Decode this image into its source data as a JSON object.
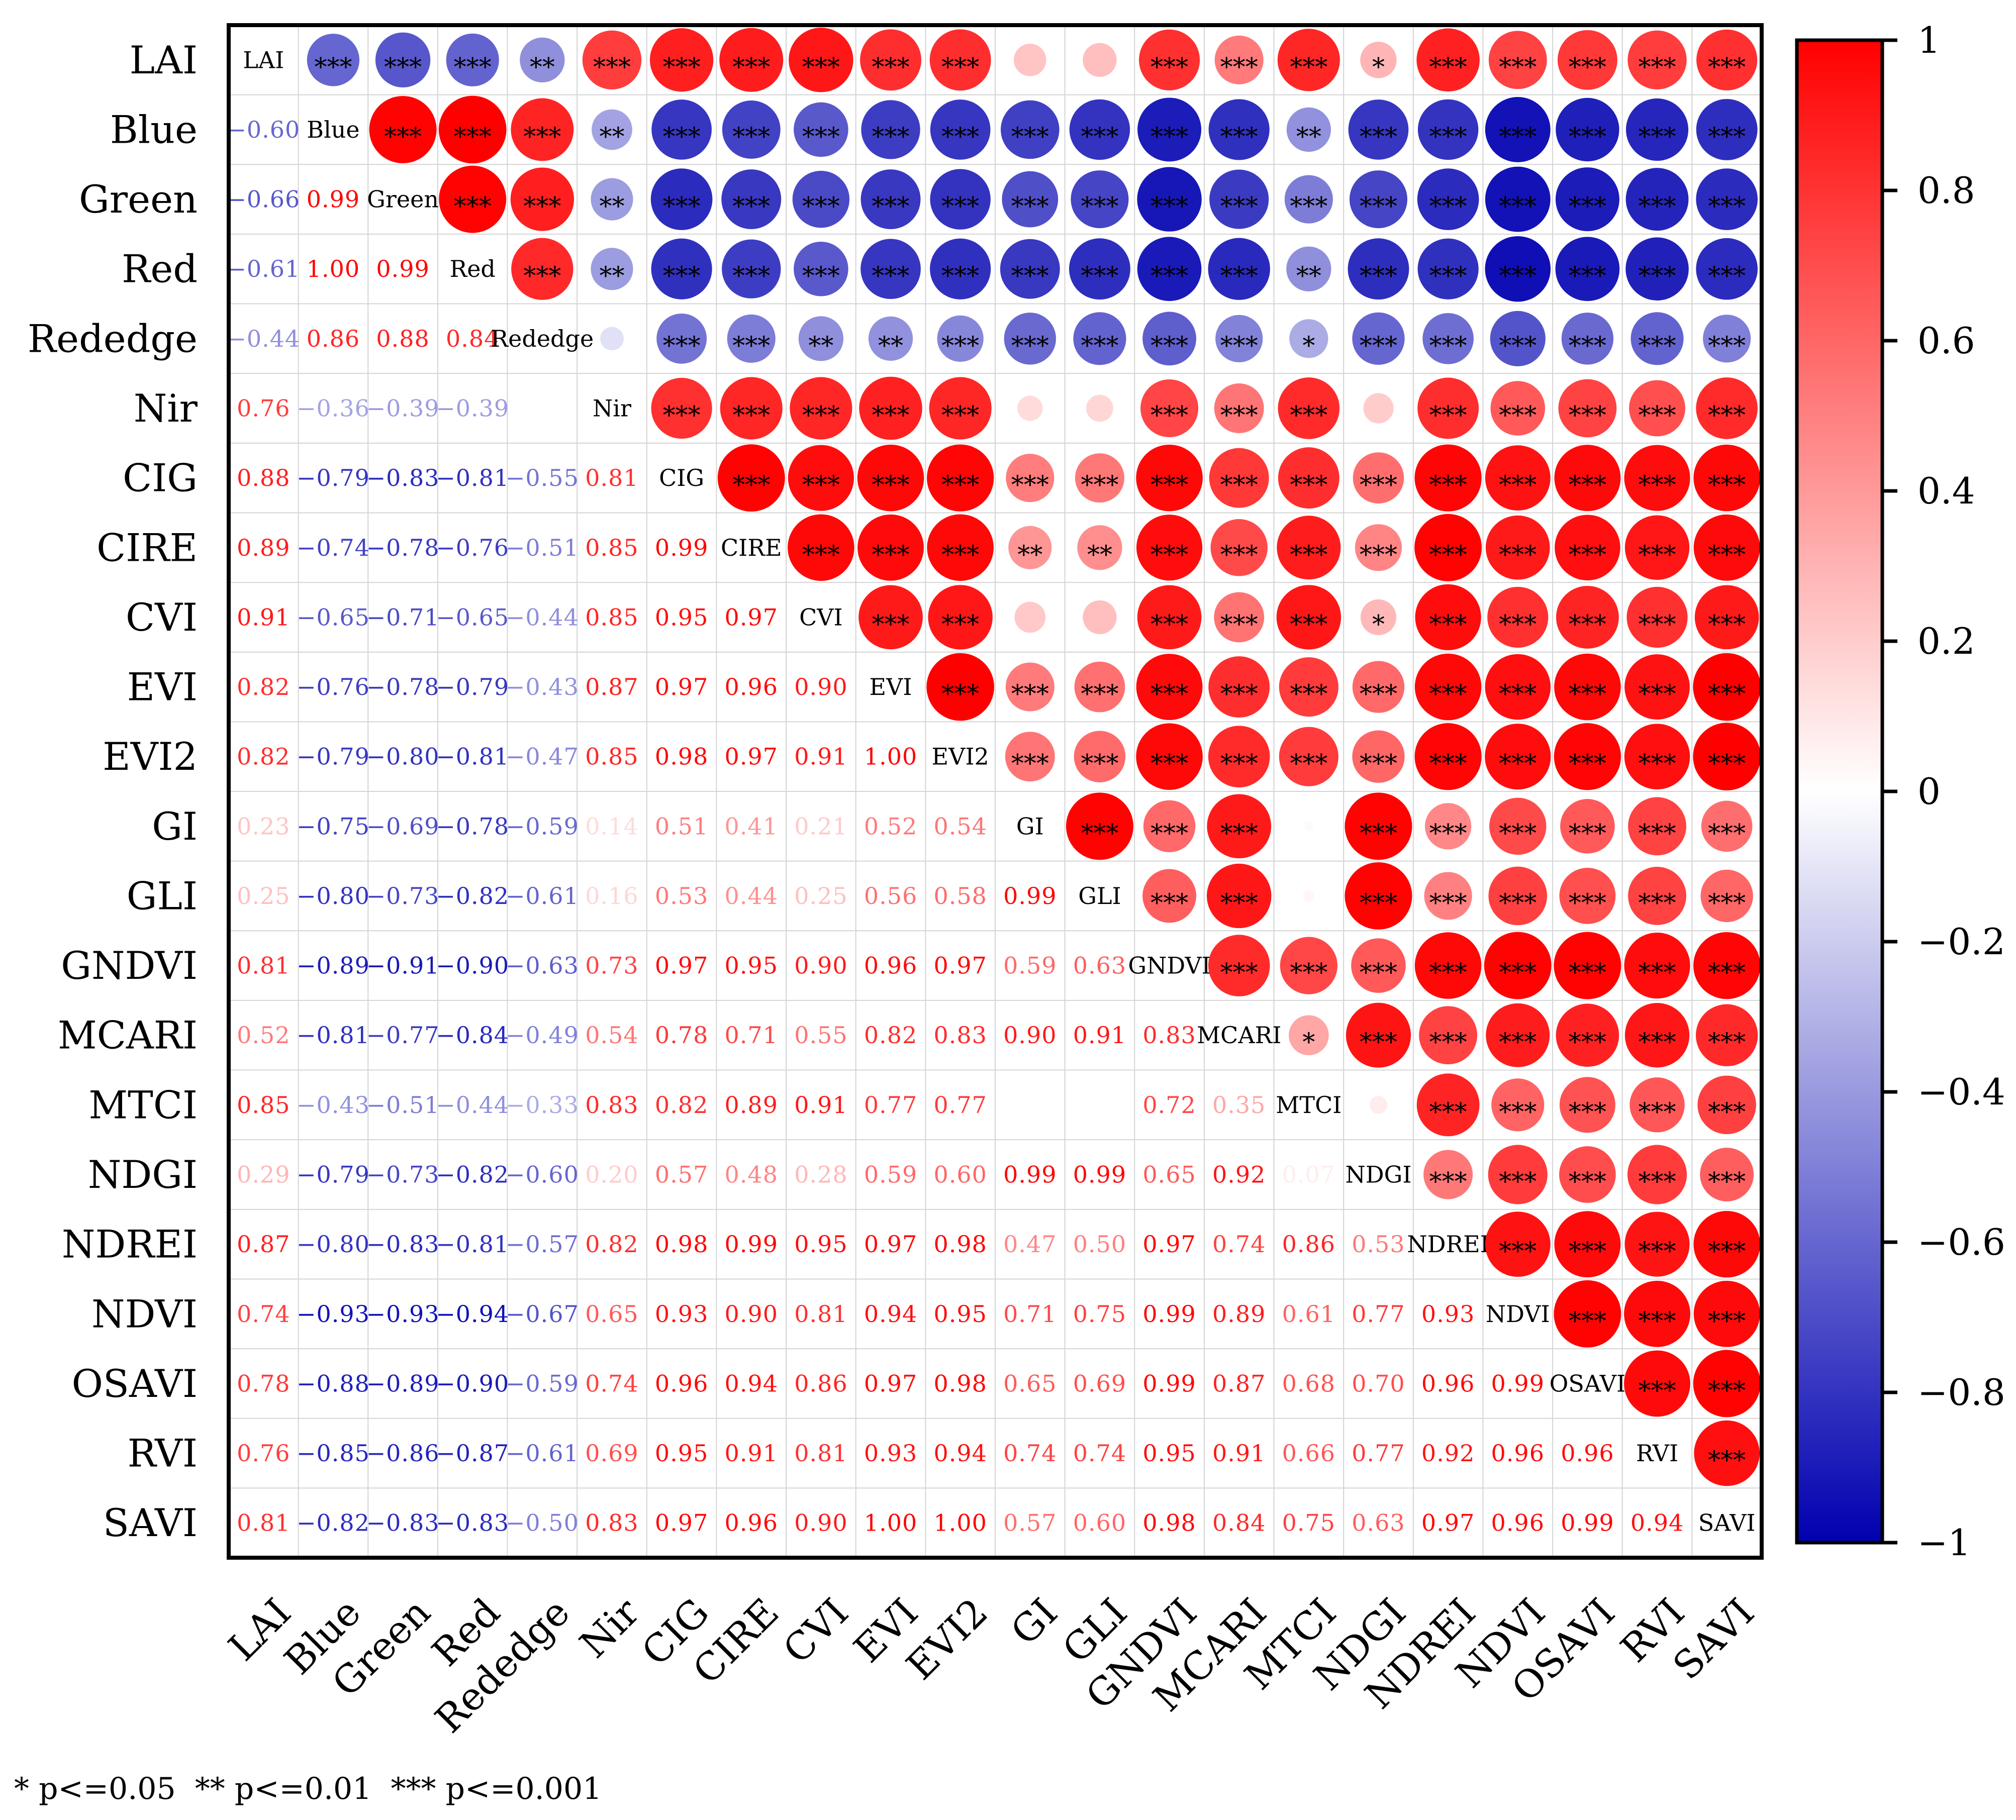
{
  "chart_data": {
    "type": "heatmap",
    "variables": [
      "LAI",
      "Blue",
      "Green",
      "Red",
      "Rededge",
      "Nir",
      "CIG",
      "CIRE",
      "CVI",
      "EVI",
      "EVI2",
      "GI",
      "GLI",
      "GNDVI",
      "MCARI",
      "MTCI",
      "NDGI",
      "NDREI",
      "NDVI",
      "OSAVI",
      "RVI",
      "SAVI"
    ],
    "lower_values": [
      [],
      [
        -0.6
      ],
      [
        -0.66,
        0.99
      ],
      [
        -0.61,
        1.0,
        0.99
      ],
      [
        -0.44,
        0.86,
        0.88,
        0.84
      ],
      [
        0.76,
        -0.36,
        -0.39,
        -0.39,
        -0.12
      ],
      [
        0.88,
        -0.79,
        -0.83,
        -0.81,
        -0.55,
        0.81
      ],
      [
        0.89,
        -0.74,
        -0.78,
        -0.76,
        -0.51,
        0.85,
        0.99
      ],
      [
        0.91,
        -0.65,
        -0.71,
        -0.65,
        -0.44,
        0.85,
        0.95,
        0.97
      ],
      [
        0.82,
        -0.76,
        -0.78,
        -0.79,
        -0.43,
        0.87,
        0.97,
        0.96,
        0.9
      ],
      [
        0.82,
        -0.79,
        -0.8,
        -0.81,
        -0.47,
        0.85,
        0.98,
        0.97,
        0.91,
        1.0
      ],
      [
        0.23,
        -0.75,
        -0.69,
        -0.78,
        -0.59,
        0.14,
        0.51,
        0.41,
        0.21,
        0.52,
        0.54
      ],
      [
        0.25,
        -0.8,
        -0.73,
        -0.82,
        -0.61,
        0.16,
        0.53,
        0.44,
        0.25,
        0.56,
        0.58,
        0.99
      ],
      [
        0.81,
        -0.89,
        -0.91,
        -0.9,
        -0.63,
        0.73,
        0.97,
        0.95,
        0.9,
        0.96,
        0.97,
        0.59,
        0.63
      ],
      [
        0.52,
        -0.81,
        -0.77,
        -0.84,
        -0.49,
        0.54,
        0.78,
        0.71,
        0.55,
        0.82,
        0.83,
        0.9,
        0.91,
        0.83
      ],
      [
        0.85,
        -0.43,
        -0.51,
        -0.44,
        -0.33,
        0.83,
        0.82,
        0.89,
        0.91,
        0.77,
        0.77,
        0.02,
        0.03,
        0.72,
        0.35
      ],
      [
        0.29,
        -0.79,
        -0.73,
        -0.82,
        -0.6,
        0.2,
        0.57,
        0.48,
        0.28,
        0.59,
        0.6,
        0.99,
        0.99,
        0.65,
        0.92,
        0.07
      ],
      [
        0.87,
        -0.8,
        -0.83,
        -0.81,
        -0.57,
        0.82,
        0.98,
        0.99,
        0.95,
        0.97,
        0.98,
        0.47,
        0.5,
        0.97,
        0.74,
        0.86,
        0.53
      ],
      [
        0.74,
        -0.93,
        -0.93,
        -0.94,
        -0.67,
        0.65,
        0.93,
        0.9,
        0.81,
        0.94,
        0.95,
        0.71,
        0.75,
        0.99,
        0.89,
        0.61,
        0.77,
        0.93
      ],
      [
        0.78,
        -0.88,
        -0.89,
        -0.9,
        -0.59,
        0.74,
        0.96,
        0.94,
        0.86,
        0.97,
        0.98,
        0.65,
        0.69,
        0.99,
        0.87,
        0.68,
        0.7,
        0.96,
        0.99
      ],
      [
        0.76,
        -0.85,
        -0.86,
        -0.87,
        -0.61,
        0.69,
        0.95,
        0.91,
        0.81,
        0.93,
        0.94,
        0.74,
        0.74,
        0.95,
        0.91,
        0.66,
        0.77,
        0.92,
        0.96,
        0.96
      ],
      [
        0.81,
        -0.82,
        -0.83,
        -0.83,
        -0.5,
        0.83,
        0.97,
        0.96,
        0.9,
        1.0,
        1.0,
        0.57,
        0.6,
        0.98,
        0.84,
        0.75,
        0.63,
        0.97,
        0.96,
        0.99,
        0.94
      ]
    ],
    "lower_labels": [
      [],
      [
        "-0.60"
      ],
      [
        "-0.66",
        "0.99"
      ],
      [
        "-0.61",
        "1.00",
        "0.99"
      ],
      [
        "-0.44",
        "0.86",
        "0.88",
        "0.84"
      ],
      [
        "0.76",
        "-0.36",
        "-0.39",
        "-0.39",
        ""
      ],
      [
        "0.88",
        "-0.79",
        "-0.83",
        "-0.81",
        "-0.55",
        "0.81"
      ],
      [
        "0.89",
        "-0.74",
        "-0.78",
        "-0.76",
        "-0.51",
        "0.85",
        "0.99"
      ],
      [
        "0.91",
        "-0.65",
        "-0.71",
        "-0.65",
        "-0.44",
        "0.85",
        "0.95",
        "0.97"
      ],
      [
        "0.82",
        "-0.76",
        "-0.78",
        "-0.79",
        "-0.43",
        "0.87",
        "0.97",
        "0.96",
        "0.90"
      ],
      [
        "0.82",
        "-0.79",
        "-0.80",
        "-0.81",
        "-0.47",
        "0.85",
        "0.98",
        "0.97",
        "0.91",
        "1.00"
      ],
      [
        "0.23",
        "-0.75",
        "-0.69",
        "-0.78",
        "-0.59",
        "0.14",
        "0.51",
        "0.41",
        "0.21",
        "0.52",
        "0.54"
      ],
      [
        "0.25",
        "-0.80",
        "-0.73",
        "-0.82",
        "-0.61",
        "0.16",
        "0.53",
        "0.44",
        "0.25",
        "0.56",
        "0.58",
        "0.99"
      ],
      [
        "0.81",
        "-0.89",
        "-0.91",
        "-0.90",
        "-0.63",
        "0.73",
        "0.97",
        "0.95",
        "0.90",
        "0.96",
        "0.97",
        "0.59",
        "0.63"
      ],
      [
        "0.52",
        "-0.81",
        "-0.77",
        "-0.84",
        "-0.49",
        "0.54",
        "0.78",
        "0.71",
        "0.55",
        "0.82",
        "0.83",
        "0.90",
        "0.91",
        "0.83"
      ],
      [
        "0.85",
        "-0.43",
        "-0.51",
        "-0.44",
        "-0.33",
        "0.83",
        "0.82",
        "0.89",
        "0.91",
        "0.77",
        "0.77",
        "",
        "",
        "0.72",
        "0.35"
      ],
      [
        "0.29",
        "-0.79",
        "-0.73",
        "-0.82",
        "-0.60",
        "0.20",
        "0.57",
        "0.48",
        "0.28",
        "0.59",
        "0.60",
        "0.99",
        "0.99",
        "0.65",
        "0.92",
        "0.07"
      ],
      [
        "0.87",
        "-0.80",
        "-0.83",
        "-0.81",
        "-0.57",
        "0.82",
        "0.98",
        "0.99",
        "0.95",
        "0.97",
        "0.98",
        "0.47",
        "0.50",
        "0.97",
        "0.74",
        "0.86",
        "0.53"
      ],
      [
        "0.74",
        "-0.93",
        "-0.93",
        "-0.94",
        "-0.67",
        "0.65",
        "0.93",
        "0.90",
        "0.81",
        "0.94",
        "0.95",
        "0.71",
        "0.75",
        "0.99",
        "0.89",
        "0.61",
        "0.77",
        "0.93"
      ],
      [
        "0.78",
        "-0.88",
        "-0.89",
        "-0.90",
        "-0.59",
        "0.74",
        "0.96",
        "0.94",
        "0.86",
        "0.97",
        "0.98",
        "0.65",
        "0.69",
        "0.99",
        "0.87",
        "0.68",
        "0.70",
        "0.96",
        "0.99"
      ],
      [
        "0.76",
        "-0.85",
        "-0.86",
        "-0.87",
        "-0.61",
        "0.69",
        "0.95",
        "0.91",
        "0.81",
        "0.93",
        "0.94",
        "0.74",
        "0.74",
        "0.95",
        "0.91",
        "0.66",
        "0.77",
        "0.92",
        "0.96",
        "0.96"
      ],
      [
        "0.81",
        "-0.82",
        "-0.83",
        "-0.83",
        "-0.50",
        "0.83",
        "0.97",
        "0.96",
        "0.90",
        "1.00",
        "1.00",
        "0.57",
        "0.60",
        "0.98",
        "0.84",
        "0.75",
        "0.63",
        "0.97",
        "0.96",
        "0.99",
        "0.94"
      ]
    ],
    "upper_stars": [
      [
        "",
        "***",
        "***",
        "***",
        "**",
        "***",
        "***",
        "***",
        "***",
        "***",
        "***",
        "",
        "",
        "***",
        "***",
        "***",
        "*",
        "***",
        "***",
        "***",
        "***",
        "***"
      ],
      [
        "",
        "",
        "***",
        "***",
        "***",
        "**",
        "***",
        "***",
        "***",
        "***",
        "***",
        "***",
        "***",
        "***",
        "***",
        "**",
        "***",
        "***",
        "***",
        "***",
        "***",
        "***"
      ],
      [
        "",
        "",
        "",
        "***",
        "***",
        "**",
        "***",
        "***",
        "***",
        "***",
        "***",
        "***",
        "***",
        "***",
        "***",
        "***",
        "***",
        "***",
        "***",
        "***",
        "***",
        "***"
      ],
      [
        "",
        "",
        "",
        "",
        "***",
        "**",
        "***",
        "***",
        "***",
        "***",
        "***",
        "***",
        "***",
        "***",
        "***",
        "**",
        "***",
        "***",
        "***",
        "***",
        "***",
        "***"
      ],
      [
        "",
        "",
        "",
        "",
        "",
        "",
        "***",
        "***",
        "**",
        "**",
        "***",
        "***",
        "***",
        "***",
        "***",
        "*",
        "***",
        "***",
        "***",
        "***",
        "***",
        "***"
      ],
      [
        "",
        "",
        "",
        "",
        "",
        "",
        "***",
        "***",
        "***",
        "***",
        "***",
        "",
        "",
        "***",
        "***",
        "***",
        "",
        "***",
        "***",
        "***",
        "***",
        "***"
      ],
      [
        "",
        "",
        "",
        "",
        "",
        "",
        "",
        "***",
        "***",
        "***",
        "***",
        "***",
        "***",
        "***",
        "***",
        "***",
        "***",
        "***",
        "***",
        "***",
        "***",
        "***"
      ],
      [
        "",
        "",
        "",
        "",
        "",
        "",
        "",
        "",
        "***",
        "***",
        "***",
        "**",
        "**",
        "***",
        "***",
        "***",
        "***",
        "***",
        "***",
        "***",
        "***",
        "***"
      ],
      [
        "",
        "",
        "",
        "",
        "",
        "",
        "",
        "",
        "",
        "***",
        "***",
        "",
        "",
        "***",
        "***",
        "***",
        "*",
        "***",
        "***",
        "***",
        "***",
        "***"
      ],
      [
        "",
        "",
        "",
        "",
        "",
        "",
        "",
        "",
        "",
        "",
        "***",
        "***",
        "***",
        "***",
        "***",
        "***",
        "***",
        "***",
        "***",
        "***",
        "***",
        "***"
      ],
      [
        "",
        "",
        "",
        "",
        "",
        "",
        "",
        "",
        "",
        "",
        "",
        "***",
        "***",
        "***",
        "***",
        "***",
        "***",
        "***",
        "***",
        "***",
        "***",
        "***"
      ],
      [
        "",
        "",
        "",
        "",
        "",
        "",
        "",
        "",
        "",
        "",
        "",
        "",
        "***",
        "***",
        "***",
        "",
        "***",
        "***",
        "***",
        "***",
        "***",
        "***"
      ],
      [
        "",
        "",
        "",
        "",
        "",
        "",
        "",
        "",
        "",
        "",
        "",
        "",
        "",
        "***",
        "***",
        "",
        "***",
        "***",
        "***",
        "***",
        "***",
        "***"
      ],
      [
        "",
        "",
        "",
        "",
        "",
        "",
        "",
        "",
        "",
        "",
        "",
        "",
        "",
        "",
        "***",
        "***",
        "***",
        "***",
        "***",
        "***",
        "***",
        "***"
      ],
      [
        "",
        "",
        "",
        "",
        "",
        "",
        "",
        "",
        "",
        "",
        "",
        "",
        "",
        "",
        "",
        "*",
        "***",
        "***",
        "***",
        "***",
        "***",
        "***"
      ],
      [
        "",
        "",
        "",
        "",
        "",
        "",
        "",
        "",
        "",
        "",
        "",
        "",
        "",
        "",
        "",
        "",
        "",
        "***",
        "***",
        "***",
        "***",
        "***"
      ],
      [
        "",
        "",
        "",
        "",
        "",
        "",
        "",
        "",
        "",
        "",
        "",
        "",
        "",
        "",
        "",
        "",
        "",
        "***",
        "***",
        "***",
        "***",
        "***"
      ],
      [
        "",
        "",
        "",
        "",
        "",
        "",
        "",
        "",
        "",
        "",
        "",
        "",
        "",
        "",
        "",
        "",
        "",
        "",
        "***",
        "***",
        "***",
        "***"
      ],
      [
        "",
        "",
        "",
        "",
        "",
        "",
        "",
        "",
        "",
        "",
        "",
        "",
        "",
        "",
        "",
        "",
        "",
        "",
        "",
        "***",
        "***",
        "***"
      ],
      [
        "",
        "",
        "",
        "",
        "",
        "",
        "",
        "",
        "",
        "",
        "",
        "",
        "",
        "",
        "",
        "",
        "",
        "",
        "",
        "",
        "***",
        "***"
      ],
      [
        "",
        "",
        "",
        "",
        "",
        "",
        "",
        "",
        "",
        "",
        "",
        "",
        "",
        "",
        "",
        "",
        "",
        "",
        "",
        "",
        "",
        "***"
      ],
      [
        "",
        "",
        "",
        "",
        "",
        "",
        "",
        "",
        "",
        "",
        "",
        "",
        "",
        "",
        "",
        "",
        "",
        "",
        "",
        "",
        "",
        ""
      ]
    ],
    "colorbar": {
      "range": [
        -1,
        1
      ],
      "ticks": [
        1,
        0.8,
        0.6,
        0.4,
        0.2,
        0,
        -0.2,
        -0.4,
        -0.6,
        -0.8,
        -1
      ],
      "tick_labels": [
        "1",
        "0.8",
        "0.6",
        "0.4",
        "0.2",
        "0",
        "−0.2",
        "−0.4",
        "−0.6",
        "−0.8",
        "−1"
      ],
      "colors": {
        "negative": "#0000b0",
        "zero": "#ffffff",
        "positive": "#ff0000"
      }
    },
    "significance_legend": "* p<=0.05  ** p<=0.01  *** p<=0.001",
    "grid": true
  }
}
